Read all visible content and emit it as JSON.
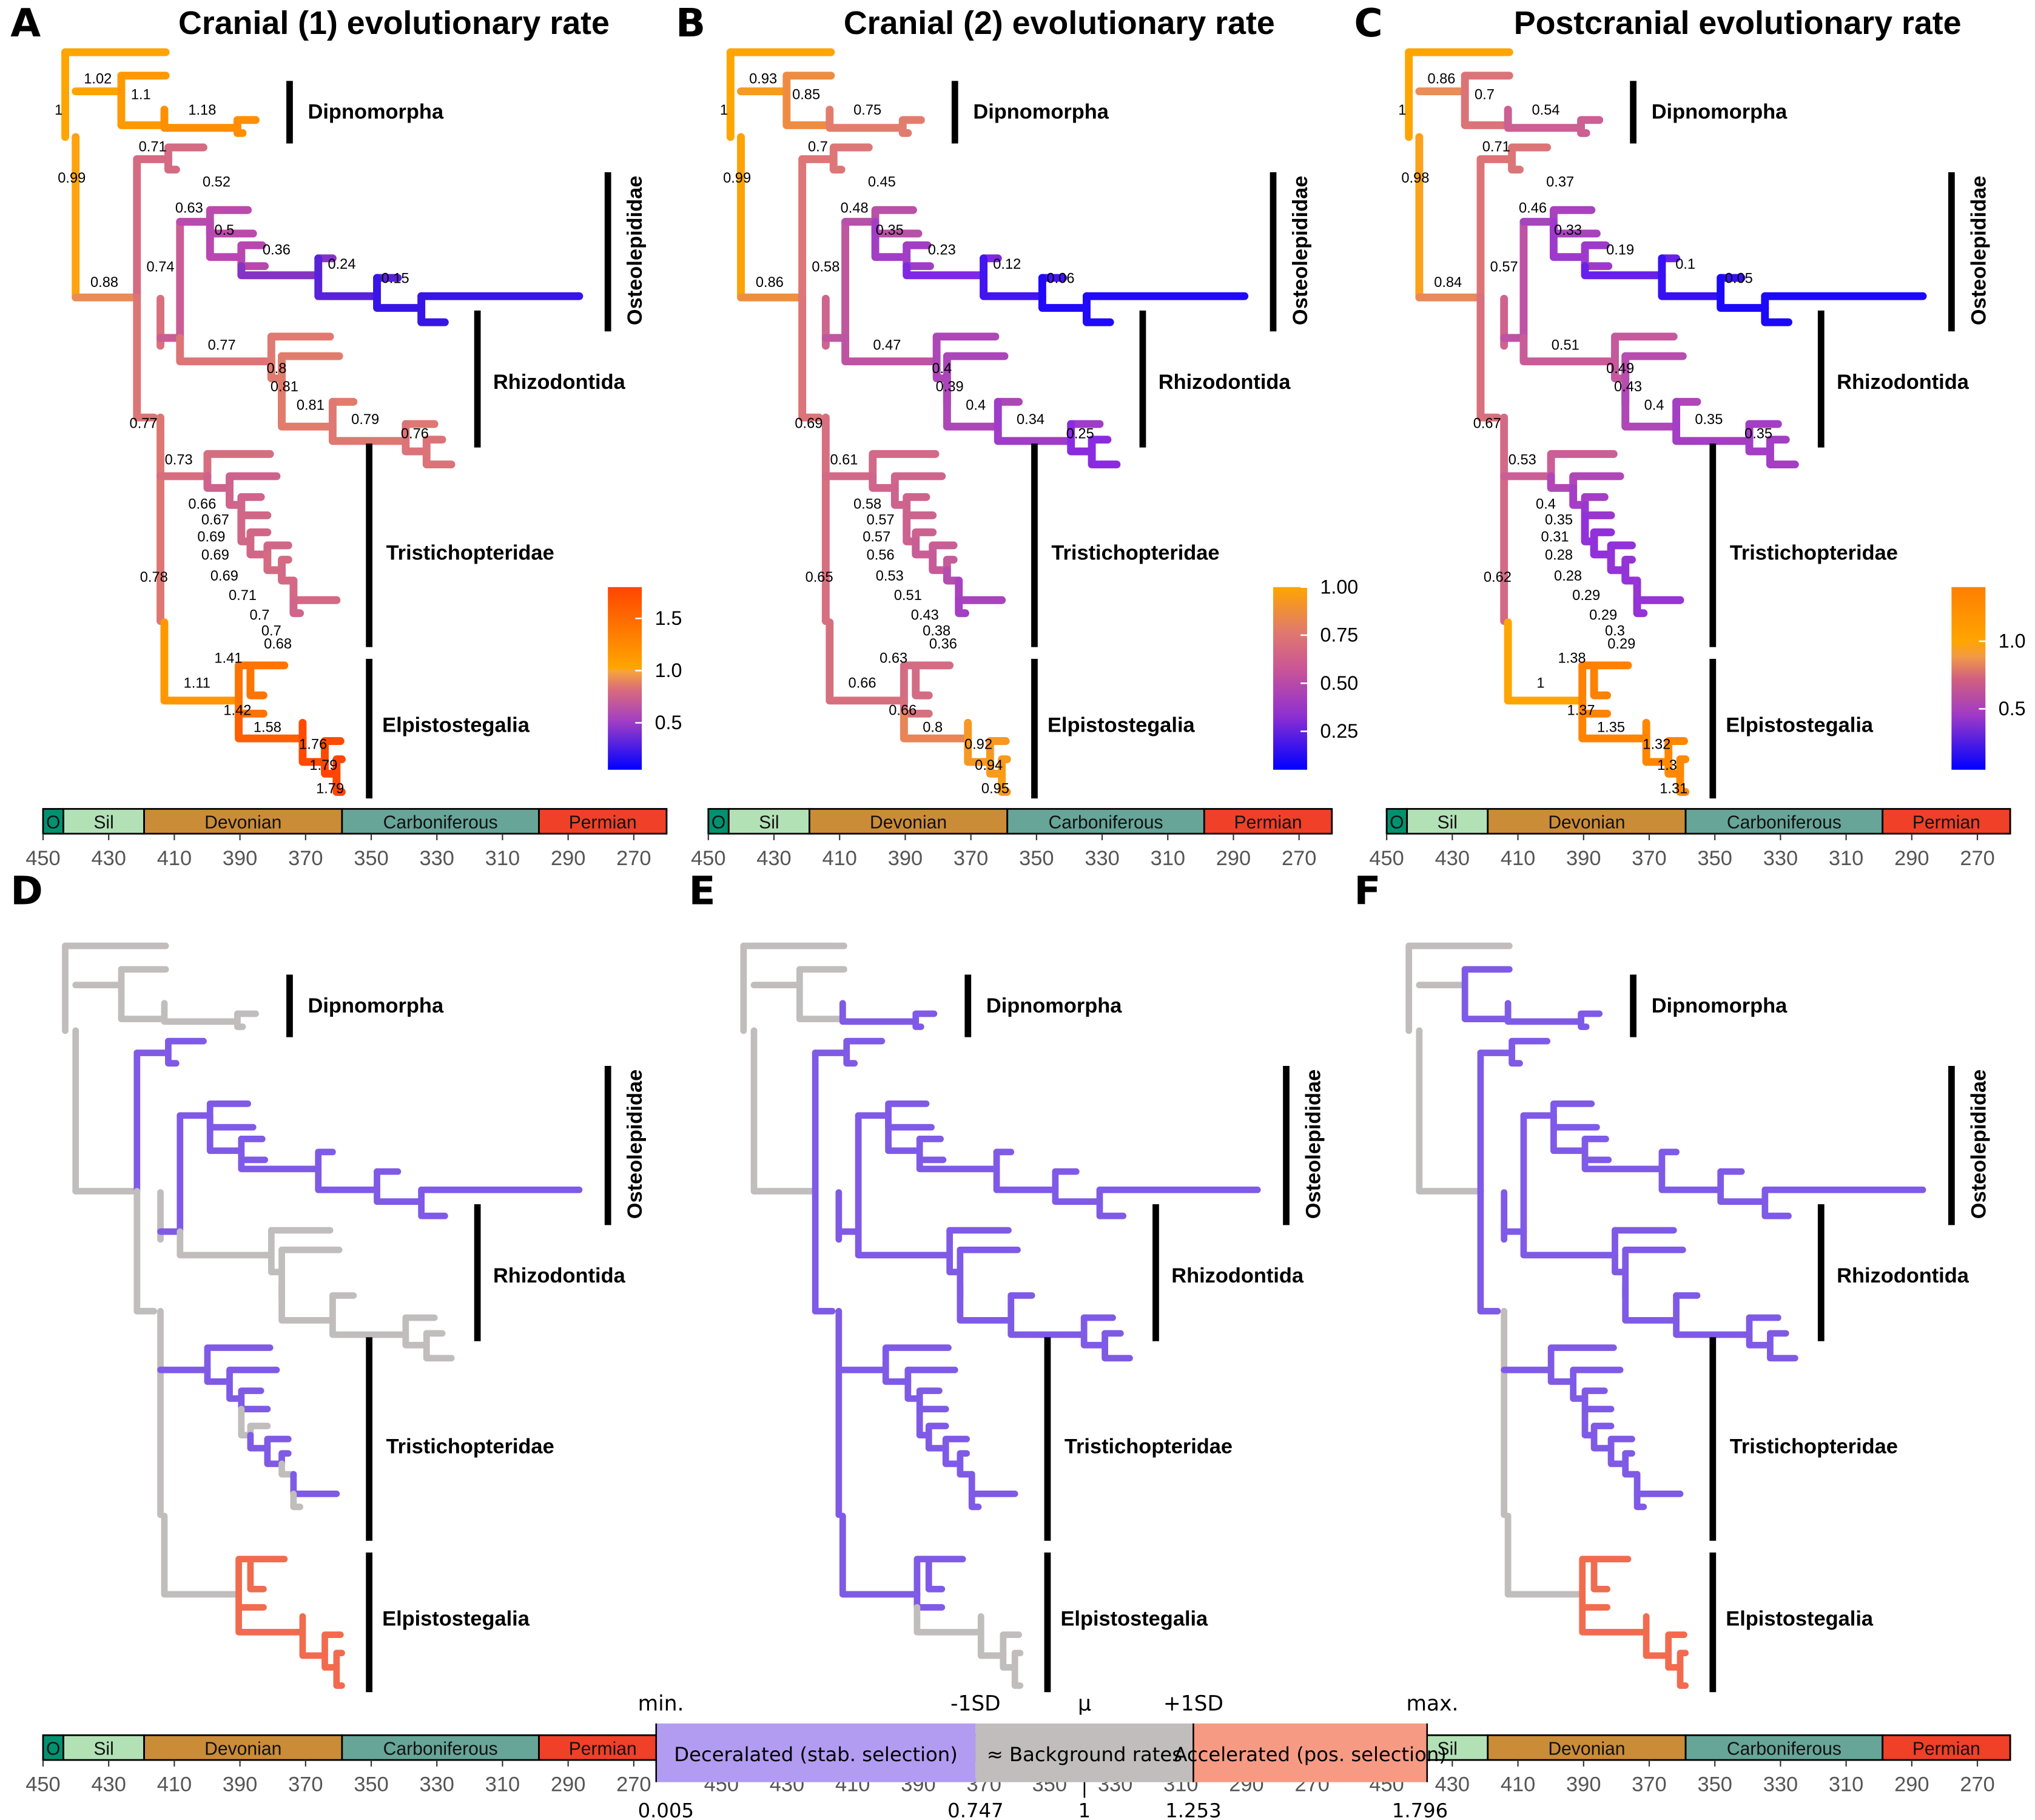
{
  "figure": {
    "time_axis": {
      "ticks": [
        "450",
        "430",
        "410",
        "390",
        "370",
        "350",
        "330",
        "310",
        "290",
        "270"
      ],
      "range_ma": [
        450,
        260
      ],
      "periods": [
        {
          "label": "O",
          "start": 450,
          "end": 443.8,
          "color": "#009270"
        },
        {
          "label": "Sil",
          "start": 443.8,
          "end": 419.2,
          "color": "#B3E1B6"
        },
        {
          "label": "Devonian",
          "start": 419.2,
          "end": 358.9,
          "color": "#CB8C37"
        },
        {
          "label": "Carboniferous",
          "start": 358.9,
          "end": 298.9,
          "color": "#67A599"
        },
        {
          "label": "Permian",
          "start": 298.9,
          "end": 260,
          "color": "#F04028"
        }
      ]
    },
    "clades": {
      "dipnomorpha": "Dipnomorpha",
      "osteolepididae": "Osteolepididae",
      "rhizodontida": "Rhizodontida",
      "tristichopteridae": "Tristichopteridae",
      "elpistostegalia": "Elpistostegalia"
    },
    "panels": [
      {
        "letter": "A",
        "title": "Cranial (1) evolutionary rate",
        "mode": "continuous",
        "colorbar": {
          "ticks": [
            "1.5",
            "1.0",
            "0.5"
          ],
          "tick_values": [
            1.5,
            1.0,
            0.5
          ],
          "range": [
            0.05,
            1.8
          ],
          "mid": 1.0
        },
        "rates": {
          "root": 1,
          "lower_root": 0.99,
          "dip_stem": 1.02,
          "dip_a": 1.1,
          "dip_b": 1.18,
          "tetra_stem": 0.88,
          "grp1": 0.71,
          "ost_rhz": 0.74,
          "ost": 0.63,
          "ost_a": 0.52,
          "ost_b": 0.5,
          "ost_c": 0.36,
          "ost_d": 0.24,
          "ost_e": 0.15,
          "rhz": 0.77,
          "rhz_a": 0.8,
          "rhz_b": 0.81,
          "rhz_c": 0.81,
          "rhz_d": 0.79,
          "rhz_e": 0.76,
          "tri_elp": 0.77,
          "tri_elp2": 0.78,
          "tri": 0.73,
          "tri_a": 0.66,
          "tri_b": 0.67,
          "tri_c": 0.69,
          "tri_d": 0.69,
          "tri_e": 0.69,
          "tri_f": 0.71,
          "tri_g": 0.7,
          "tri_h": 0.7,
          "tri_i": 0.68,
          "elp": 1.11,
          "elp_a": 1.41,
          "elp_b": 1.42,
          "elp_c": 1.58,
          "elp_d": 1.76,
          "elp_e": 1.79,
          "elp_f": 1.79
        }
      },
      {
        "letter": "B",
        "title": "Cranial (2) evolutionary rate",
        "mode": "continuous",
        "colorbar": {
          "ticks": [
            "1.00",
            "0.75",
            "0.50",
            "0.25"
          ],
          "tick_values": [
            1.0,
            0.75,
            0.5,
            0.25
          ],
          "range": [
            0.05,
            1.0
          ],
          "mid": 1.0
        },
        "rates": {
          "root": 1,
          "lower_root": 0.99,
          "dip_stem": 0.93,
          "dip_a": 0.85,
          "dip_b": 0.75,
          "tetra_stem": 0.86,
          "grp1": 0.7,
          "ost_rhz": 0.58,
          "ost": 0.48,
          "ost_a": 0.45,
          "ost_b": 0.35,
          "ost_c": 0.23,
          "ost_d": 0.12,
          "ost_e": 0.06,
          "rhz": 0.47,
          "rhz_a": 0.4,
          "rhz_b": 0.39,
          "rhz_c": 0.4,
          "rhz_d": 0.34,
          "rhz_e": 0.25,
          "tri_elp": 0.69,
          "tri_elp2": 0.65,
          "tri": 0.61,
          "tri_a": 0.58,
          "tri_b": 0.57,
          "tri_c": 0.57,
          "tri_d": 0.56,
          "tri_e": 0.53,
          "tri_f": 0.51,
          "tri_g": 0.43,
          "tri_h": 0.38,
          "tri_i": 0.36,
          "elp": 0.66,
          "elp_a": 0.63,
          "elp_b": 0.66,
          "elp_c": 0.8,
          "elp_d": 0.92,
          "elp_e": 0.94,
          "elp_f": 0.95
        }
      },
      {
        "letter": "C",
        "title": "Postcranial evolutionary rate",
        "mode": "continuous",
        "colorbar": {
          "ticks": [
            "1.0",
            "0.5"
          ],
          "tick_values": [
            1.0,
            0.5
          ],
          "range": [
            0.05,
            1.4
          ],
          "mid": 1.0
        },
        "rates": {
          "root": 1,
          "lower_root": 0.98,
          "dip_stem": 0.86,
          "dip_a": 0.7,
          "dip_b": 0.54,
          "tetra_stem": 0.84,
          "grp1": 0.71,
          "ost_rhz": 0.57,
          "ost": 0.46,
          "ost_a": 0.37,
          "ost_b": 0.33,
          "ost_c": 0.19,
          "ost_d": 0.1,
          "ost_e": 0.05,
          "rhz": 0.51,
          "rhz_a": 0.49,
          "rhz_b": 0.43,
          "rhz_c": 0.4,
          "rhz_d": 0.35,
          "rhz_e": 0.35,
          "tri_elp": 0.67,
          "tri_elp2": 0.62,
          "tri": 0.53,
          "tri_a": 0.4,
          "tri_b": 0.35,
          "tri_c": 0.31,
          "tri_d": 0.28,
          "tri_e": 0.28,
          "tri_f": 0.29,
          "tri_g": 0.29,
          "tri_h": 0.3,
          "tri_i": 0.29,
          "elp": 1,
          "elp_a": 1.38,
          "elp_b": 1.37,
          "elp_c": 1.35,
          "elp_d": 1.32,
          "elp_e": 1.3,
          "elp_f": 1.31
        }
      },
      {
        "letter": "D",
        "mode": "categorical",
        "classes": {
          "root": "bg",
          "lower_root": "bg",
          "dip_stem": "bg",
          "dip_a": "bg",
          "dip_b": "bg",
          "tetra_stem": "bg",
          "grp1": "dec",
          "ost_rhz": "bg",
          "ost": "dec",
          "ost_a": "dec",
          "ost_b": "dec",
          "ost_c": "dec",
          "ost_d": "dec",
          "ost_e": "dec",
          "rhz": "bg",
          "rhz_a": "bg",
          "rhz_b": "bg",
          "rhz_c": "bg",
          "rhz_d": "bg",
          "rhz_e": "bg",
          "tri_elp": "bg",
          "tri_elp2": "bg",
          "tri": "dec",
          "tri_a": "dec",
          "tri_b": "dec",
          "tri_c": "dec",
          "tri_d": "bg",
          "tri_e": "dec",
          "tri_f": "dec",
          "tri_g": "bg",
          "tri_h": "dec",
          "tri_i": "bg",
          "elp": "bg",
          "elp_a": "acc",
          "elp_b": "acc",
          "elp_c": "acc",
          "elp_d": "acc",
          "elp_e": "acc",
          "elp_f": "acc"
        }
      },
      {
        "letter": "E",
        "mode": "categorical",
        "classes": {
          "root": "bg",
          "lower_root": "bg",
          "dip_stem": "bg",
          "dip_a": "bg",
          "dip_b": "dec",
          "tetra_stem": "bg",
          "grp1": "dec",
          "ost_rhz": "dec",
          "ost": "dec",
          "ost_a": "dec",
          "ost_b": "dec",
          "ost_c": "dec",
          "ost_d": "dec",
          "ost_e": "dec",
          "rhz": "dec",
          "rhz_a": "dec",
          "rhz_b": "dec",
          "rhz_c": "dec",
          "rhz_d": "dec",
          "rhz_e": "dec",
          "tri_elp": "dec",
          "tri_elp2": "dec",
          "tri": "dec",
          "tri_a": "dec",
          "tri_b": "dec",
          "tri_c": "dec",
          "tri_d": "dec",
          "tri_e": "dec",
          "tri_f": "dec",
          "tri_g": "dec",
          "tri_h": "dec",
          "tri_i": "dec",
          "elp": "dec",
          "elp_a": "dec",
          "elp_b": "dec",
          "elp_c": "bg",
          "elp_d": "bg",
          "elp_e": "bg",
          "elp_f": "bg"
        }
      },
      {
        "letter": "F",
        "mode": "categorical",
        "classes": {
          "root": "bg",
          "lower_root": "bg",
          "dip_stem": "bg",
          "dip_a": "dec",
          "dip_b": "dec",
          "tetra_stem": "bg",
          "grp1": "dec",
          "ost_rhz": "dec",
          "ost": "dec",
          "ost_a": "dec",
          "ost_b": "dec",
          "ost_c": "dec",
          "ost_d": "dec",
          "ost_e": "dec",
          "rhz": "dec",
          "rhz_a": "dec",
          "rhz_b": "dec",
          "rhz_c": "dec",
          "rhz_d": "dec",
          "rhz_e": "dec",
          "tri_elp": "dec",
          "tri_elp2": "bg",
          "tri": "dec",
          "tri_a": "dec",
          "tri_b": "dec",
          "tri_c": "dec",
          "tri_d": "dec",
          "tri_e": "dec",
          "tri_f": "dec",
          "tri_g": "dec",
          "tri_h": "dec",
          "tri_i": "dec",
          "elp": "bg",
          "elp_a": "acc",
          "elp_b": "acc",
          "elp_c": "acc",
          "elp_d": "acc",
          "elp_e": "acc",
          "elp_f": "acc"
        }
      }
    ],
    "class_colors": {
      "dec": "#7F5AE6",
      "bg": "#C0BDBC",
      "acc": "#F26B4E"
    },
    "legend": {
      "heads": {
        "min": "min.",
        "m1sd": "-1SD",
        "mu": "μ",
        "p1sd": "+1SD",
        "max": "max."
      },
      "segments": [
        {
          "label": "Deceralated (stab. selection)",
          "color": "#B19CF2",
          "from": 0.005,
          "to": 0.747
        },
        {
          "label": "≈ Background rates",
          "color": "#C0BDBC",
          "from": 0.747,
          "to": 1.253
        },
        {
          "label": "Accelerated (pos. selection)",
          "color": "#F79A84",
          "from": 1.253,
          "to": 1.796
        }
      ],
      "values": {
        "min": "0.005",
        "m1sd": "0.747",
        "mu": "1",
        "p1sd": "1.253",
        "max": "1.796"
      },
      "numeric": {
        "min": 0.005,
        "m1sd": 0.747,
        "mu": 1,
        "p1sd": 1.253,
        "max": 1.796
      }
    }
  }
}
